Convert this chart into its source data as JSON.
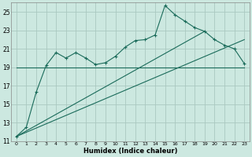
{
  "xlabel": "Humidex (Indice chaleur)",
  "bg_color": "#cce8e0",
  "grid_color": "#aac8c0",
  "line_color": "#1a6b5a",
  "xlim": [
    -0.5,
    23.5
  ],
  "ylim": [
    11,
    26
  ],
  "yticks": [
    11,
    13,
    15,
    17,
    19,
    21,
    23,
    25
  ],
  "xticks": [
    0,
    1,
    2,
    3,
    4,
    5,
    6,
    7,
    8,
    9,
    10,
    11,
    12,
    13,
    14,
    15,
    16,
    17,
    18,
    19,
    20,
    21,
    22,
    23
  ],
  "main_x": [
    0,
    1,
    2,
    3,
    4,
    5,
    6,
    7,
    8,
    9,
    10,
    11,
    12,
    13,
    14,
    15,
    16,
    17,
    18,
    19,
    20,
    21,
    22,
    23
  ],
  "main_y": [
    11.5,
    12.5,
    16.3,
    19.2,
    20.6,
    20.0,
    20.6,
    20.0,
    19.3,
    19.5,
    20.2,
    21.2,
    21.9,
    22.0,
    22.5,
    25.7,
    24.7,
    24.0,
    23.3,
    22.9,
    22.0,
    21.4,
    21.0,
    19.4
  ],
  "line1_x": [
    0,
    23
  ],
  "line1_y": [
    19.0,
    19.0
  ],
  "line2_x": [
    0,
    23
  ],
  "line2_y": [
    11.5,
    22.0
  ],
  "line3_x": [
    0,
    19
  ],
  "line3_y": [
    11.5,
    22.9
  ]
}
